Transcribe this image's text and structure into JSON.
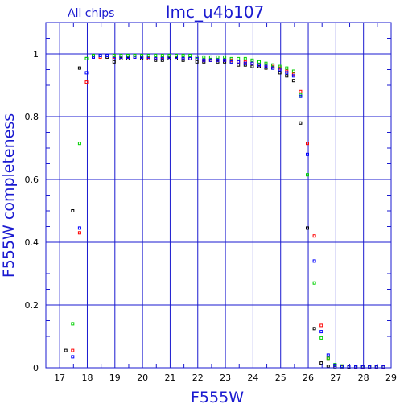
{
  "chart_data": {
    "type": "scatter",
    "title_left": "All chips",
    "title_main": "lmc_u4b107",
    "xlabel": "F555W",
    "ylabel": "F555W completeness",
    "xlim": [
      16.5,
      29
    ],
    "ylim": [
      0,
      1.1
    ],
    "grid": true,
    "x_ticks": [
      "17",
      "18",
      "19",
      "20",
      "21",
      "22",
      "23",
      "24",
      "25",
      "26",
      "27",
      "28",
      "29"
    ],
    "y_ticks": [
      "0",
      "0.2",
      "0.4",
      "0.6",
      "0.8",
      "1"
    ],
    "series": [
      {
        "color": "#000000",
        "points": [
          [
            17.22,
            0.055
          ],
          [
            17.47,
            0.5
          ],
          [
            17.72,
            0.955
          ],
          [
            17.97,
            0.985
          ],
          [
            18.22,
            0.99
          ],
          [
            18.47,
            0.995
          ],
          [
            18.72,
            0.99
          ],
          [
            18.97,
            0.975
          ],
          [
            19.22,
            0.985
          ],
          [
            19.47,
            0.985
          ],
          [
            19.72,
            0.99
          ],
          [
            19.97,
            0.985
          ],
          [
            20.22,
            0.985
          ],
          [
            20.47,
            0.98
          ],
          [
            20.72,
            0.98
          ],
          [
            20.97,
            0.985
          ],
          [
            21.22,
            0.985
          ],
          [
            21.47,
            0.98
          ],
          [
            21.72,
            0.985
          ],
          [
            21.97,
            0.975
          ],
          [
            22.22,
            0.975
          ],
          [
            22.47,
            0.98
          ],
          [
            22.72,
            0.975
          ],
          [
            22.97,
            0.975
          ],
          [
            23.22,
            0.975
          ],
          [
            23.47,
            0.965
          ],
          [
            23.72,
            0.965
          ],
          [
            23.97,
            0.96
          ],
          [
            24.22,
            0.96
          ],
          [
            24.47,
            0.955
          ],
          [
            24.72,
            0.955
          ],
          [
            24.97,
            0.94
          ],
          [
            25.22,
            0.93
          ],
          [
            25.47,
            0.915
          ],
          [
            25.72,
            0.78
          ],
          [
            25.97,
            0.445
          ],
          [
            26.22,
            0.125
          ],
          [
            26.47,
            0.015
          ],
          [
            26.72,
            0.005
          ],
          [
            26.97,
            0.003
          ],
          [
            27.22,
            0.003
          ],
          [
            27.47,
            0.002
          ],
          [
            27.72,
            0.002
          ],
          [
            27.97,
            0.002
          ],
          [
            28.22,
            0.002
          ],
          [
            28.47,
            0.002
          ],
          [
            28.72,
            0.002
          ]
        ]
      },
      {
        "color": "#ff0000",
        "points": [
          [
            17.47,
            0.055
          ],
          [
            17.72,
            0.43
          ],
          [
            17.97,
            0.91
          ],
          [
            18.22,
            0.99
          ],
          [
            18.47,
            0.99
          ],
          [
            18.72,
            0.995
          ],
          [
            18.97,
            0.99
          ],
          [
            19.22,
            0.99
          ],
          [
            19.47,
            0.99
          ],
          [
            19.72,
            0.99
          ],
          [
            19.97,
            0.99
          ],
          [
            20.22,
            0.985
          ],
          [
            20.47,
            0.985
          ],
          [
            20.72,
            0.99
          ],
          [
            20.97,
            0.99
          ],
          [
            21.22,
            0.99
          ],
          [
            21.47,
            0.985
          ],
          [
            21.72,
            0.985
          ],
          [
            21.97,
            0.985
          ],
          [
            22.22,
            0.98
          ],
          [
            22.47,
            0.98
          ],
          [
            22.72,
            0.98
          ],
          [
            22.97,
            0.98
          ],
          [
            23.22,
            0.98
          ],
          [
            23.47,
            0.975
          ],
          [
            23.72,
            0.975
          ],
          [
            23.97,
            0.97
          ],
          [
            24.22,
            0.965
          ],
          [
            24.47,
            0.965
          ],
          [
            24.72,
            0.96
          ],
          [
            24.97,
            0.955
          ],
          [
            25.22,
            0.945
          ],
          [
            25.47,
            0.935
          ],
          [
            25.72,
            0.88
          ],
          [
            25.97,
            0.715
          ],
          [
            26.22,
            0.42
          ],
          [
            26.47,
            0.135
          ],
          [
            26.72,
            0.03
          ],
          [
            26.97,
            0.008
          ],
          [
            27.22,
            0.005
          ],
          [
            27.47,
            0.004
          ],
          [
            27.72,
            0.003
          ],
          [
            27.97,
            0.003
          ],
          [
            28.22,
            0.003
          ],
          [
            28.47,
            0.003
          ],
          [
            28.72,
            0.003
          ]
        ]
      },
      {
        "color": "#00d000",
        "points": [
          [
            17.47,
            0.14
          ],
          [
            17.72,
            0.715
          ],
          [
            17.97,
            0.985
          ],
          [
            18.22,
            0.995
          ],
          [
            18.47,
            0.995
          ],
          [
            18.72,
            0.995
          ],
          [
            18.97,
            0.995
          ],
          [
            19.22,
            0.995
          ],
          [
            19.47,
            0.995
          ],
          [
            19.72,
            0.995
          ],
          [
            19.97,
            0.995
          ],
          [
            20.22,
            0.995
          ],
          [
            20.47,
            0.995
          ],
          [
            20.72,
            0.995
          ],
          [
            20.97,
            0.995
          ],
          [
            21.22,
            0.995
          ],
          [
            21.47,
            0.995
          ],
          [
            21.72,
            0.995
          ],
          [
            21.97,
            0.99
          ],
          [
            22.22,
            0.99
          ],
          [
            22.47,
            0.99
          ],
          [
            22.72,
            0.99
          ],
          [
            22.97,
            0.99
          ],
          [
            23.22,
            0.985
          ],
          [
            23.47,
            0.985
          ],
          [
            23.72,
            0.985
          ],
          [
            23.97,
            0.98
          ],
          [
            24.22,
            0.975
          ],
          [
            24.47,
            0.97
          ],
          [
            24.72,
            0.965
          ],
          [
            24.97,
            0.96
          ],
          [
            25.22,
            0.955
          ],
          [
            25.47,
            0.945
          ],
          [
            25.72,
            0.87
          ],
          [
            25.97,
            0.615
          ],
          [
            26.22,
            0.27
          ],
          [
            26.47,
            0.095
          ],
          [
            26.72,
            0.03
          ],
          [
            26.97,
            0.01
          ],
          [
            27.22,
            0.006
          ],
          [
            27.47,
            0.004
          ],
          [
            27.72,
            0.004
          ],
          [
            27.97,
            0.004
          ],
          [
            28.22,
            0.004
          ],
          [
            28.47,
            0.004
          ],
          [
            28.72,
            0.004
          ]
        ]
      },
      {
        "color": "#0000ff",
        "points": [
          [
            17.47,
            0.035
          ],
          [
            17.72,
            0.445
          ],
          [
            17.97,
            0.94
          ],
          [
            18.22,
            0.99
          ],
          [
            18.47,
            0.995
          ],
          [
            18.72,
            0.995
          ],
          [
            18.97,
            0.985
          ],
          [
            19.22,
            0.99
          ],
          [
            19.47,
            0.99
          ],
          [
            19.72,
            0.99
          ],
          [
            19.97,
            0.99
          ],
          [
            20.22,
            0.99
          ],
          [
            20.47,
            0.985
          ],
          [
            20.72,
            0.985
          ],
          [
            20.97,
            0.99
          ],
          [
            21.22,
            0.99
          ],
          [
            21.47,
            0.985
          ],
          [
            21.72,
            0.985
          ],
          [
            21.97,
            0.985
          ],
          [
            22.22,
            0.98
          ],
          [
            22.47,
            0.98
          ],
          [
            22.72,
            0.98
          ],
          [
            22.97,
            0.98
          ],
          [
            23.22,
            0.975
          ],
          [
            23.47,
            0.975
          ],
          [
            23.72,
            0.97
          ],
          [
            23.97,
            0.97
          ],
          [
            24.22,
            0.965
          ],
          [
            24.47,
            0.96
          ],
          [
            24.72,
            0.955
          ],
          [
            24.97,
            0.95
          ],
          [
            25.22,
            0.94
          ],
          [
            25.47,
            0.93
          ],
          [
            25.72,
            0.865
          ],
          [
            25.97,
            0.68
          ],
          [
            26.22,
            0.34
          ],
          [
            26.47,
            0.115
          ],
          [
            26.72,
            0.04
          ],
          [
            26.97,
            0.008
          ],
          [
            27.22,
            0.005
          ],
          [
            27.47,
            0.004
          ],
          [
            27.72,
            0.003
          ],
          [
            27.97,
            0.003
          ],
          [
            28.22,
            0.003
          ],
          [
            28.47,
            0.003
          ],
          [
            28.72,
            0.003
          ]
        ]
      }
    ]
  }
}
